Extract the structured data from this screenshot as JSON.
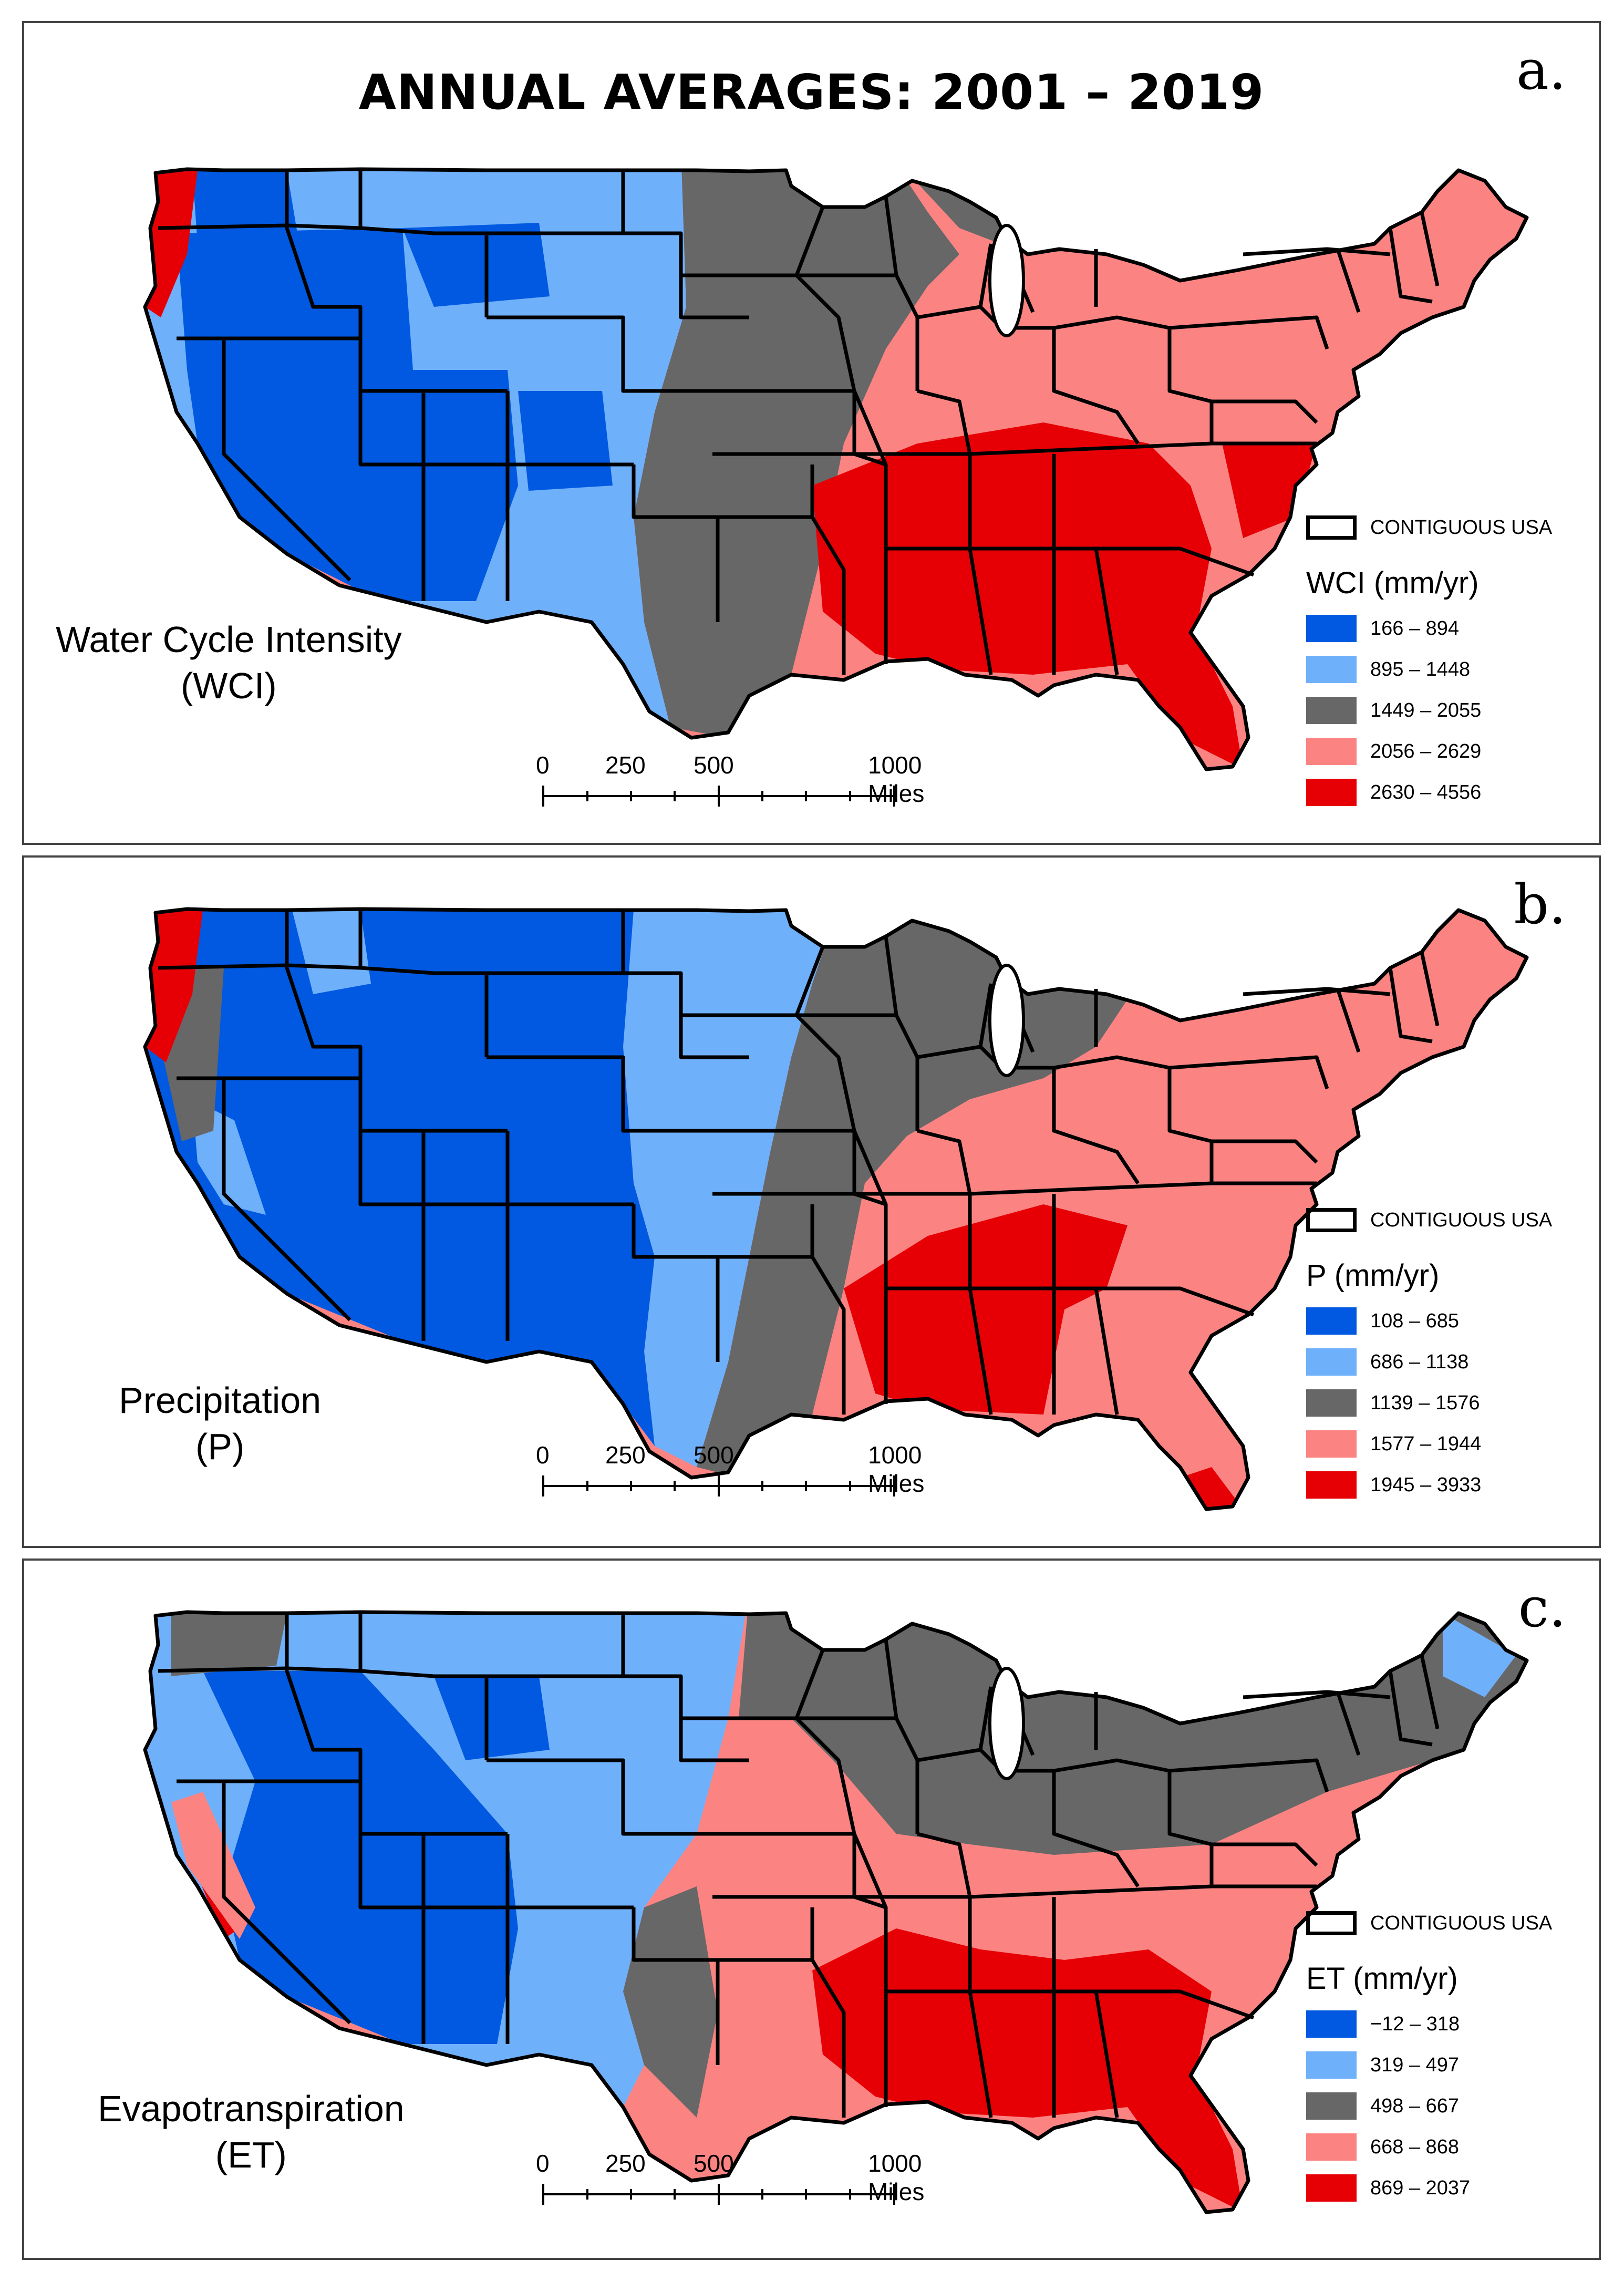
{
  "title": "ANNUAL AVERAGES: 2001 – 2019",
  "colors": {
    "class1": "#0059e0",
    "class2": "#6fb0fb",
    "class3": "#676767",
    "class4": "#fb8483",
    "class5": "#e60006",
    "boundary": "#000000"
  },
  "scalebar": {
    "labels": [
      "0",
      "250",
      "500",
      "1000 Miles"
    ]
  },
  "panels": [
    {
      "letter": "a.",
      "label_line1": "Water Cycle Intensity",
      "label_line2": "(WCI)",
      "boundary_label": "CONTIGUOUS USA",
      "legend_title": "WCI (mm/yr)",
      "classes": [
        "166 – 894",
        "895 – 1448",
        "1449 – 2055",
        "2056 – 2629",
        "2630 – 4556"
      ]
    },
    {
      "letter": "b.",
      "label_line1": "Precipitation",
      "label_line2": "(P)",
      "boundary_label": "CONTIGUOUS USA",
      "legend_title": "P (mm/yr)",
      "classes": [
        "108 – 685",
        "686 – 1138",
        "1139 – 1576",
        "1577 – 1944",
        "1945 – 3933"
      ]
    },
    {
      "letter": "c.",
      "label_line1": "Evapotranspiration",
      "label_line2": "(ET)",
      "boundary_label": "CONTIGUOUS USA",
      "legend_title": "ET (mm/yr)",
      "classes": [
        "−12 – 318",
        "319 – 497",
        "498 – 667",
        "668 – 868",
        "869 – 2037"
      ]
    }
  ]
}
